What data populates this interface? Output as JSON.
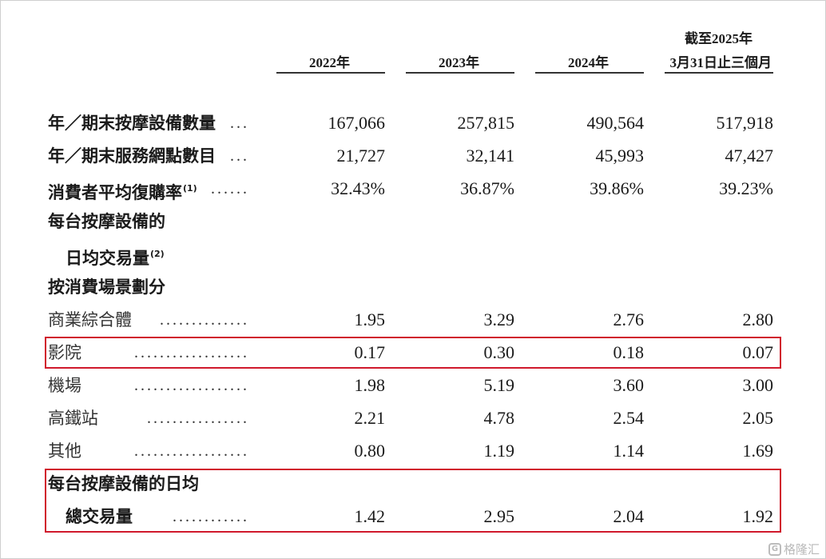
{
  "header": {
    "col1": "2022年",
    "col2": "2023年",
    "col3": "2024年",
    "col4_line1": "截至2025年",
    "col4_line2": "3月31日止三個月"
  },
  "rows": {
    "devices": {
      "label": "年／期末按摩設備數量",
      "dots": "...",
      "v": [
        "167,066",
        "257,815",
        "490,564",
        "517,918"
      ]
    },
    "outlets": {
      "label": "年／期末服務網點數目",
      "dots": "...",
      "v": [
        "21,727",
        "32,141",
        "45,993",
        "47,427"
      ]
    },
    "repurchase": {
      "label": "消費者平均復購率",
      "note": "(1)",
      "dots": "......",
      "v": [
        "32.43%",
        "36.87%",
        "39.86%",
        "39.23%"
      ]
    },
    "daily_hdr1": {
      "label": "每台按摩設備的"
    },
    "daily_hdr2": {
      "label": "日均交易量",
      "note": "(2)"
    },
    "scenario_hdr": {
      "label": "按消費場景劃分"
    },
    "mall": {
      "label": "商業綜合體",
      "dots": "..............",
      "v": [
        "1.95",
        "3.29",
        "2.76",
        "2.80"
      ]
    },
    "cinema": {
      "label": "影院",
      "dots": "..................",
      "v": [
        "0.17",
        "0.30",
        "0.18",
        "0.07"
      ]
    },
    "airport": {
      "label": "機場",
      "dots": "..................",
      "v": [
        "1.98",
        "5.19",
        "3.60",
        "3.00"
      ]
    },
    "hsr": {
      "label": "高鐵站",
      "dots": "................",
      "v": [
        "2.21",
        "4.78",
        "2.54",
        "2.05"
      ]
    },
    "other": {
      "label": "其他",
      "dots": "..................",
      "v": [
        "0.80",
        "1.19",
        "1.14",
        "1.69"
      ]
    },
    "total_hdr": {
      "label": "每台按摩設備的日均"
    },
    "total": {
      "label": "總交易量",
      "dots": "............",
      "v": [
        "1.42",
        "2.95",
        "2.04",
        "1.92"
      ]
    }
  },
  "watermark": {
    "logo": "G",
    "text": "格隆汇"
  },
  "colors": {
    "highlight": "#d0192c"
  }
}
